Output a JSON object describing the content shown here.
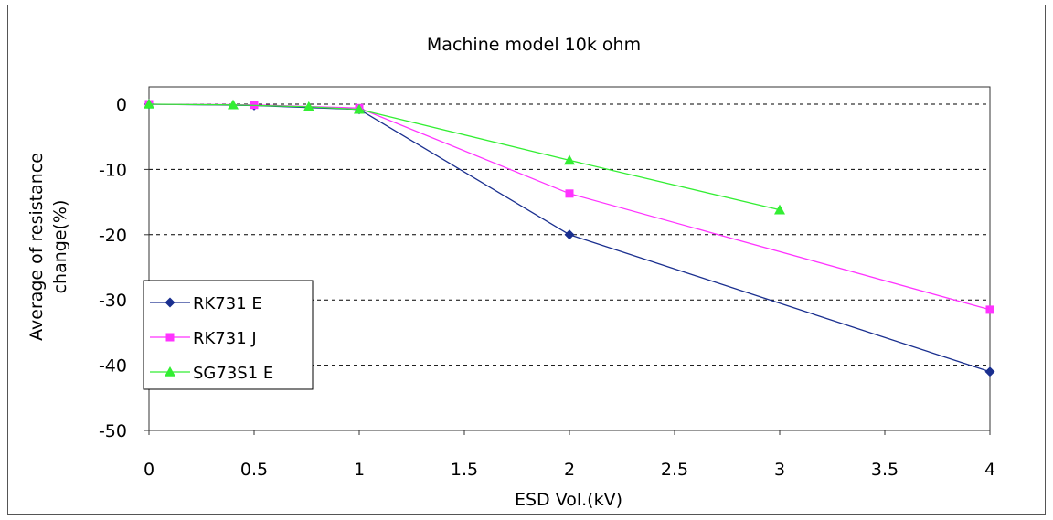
{
  "chart_data": {
    "type": "line",
    "title": "Machine model 10k ohm",
    "xlabel": "ESD Vol.(kV)",
    "ylabel": "Average of resistance change(%)",
    "ylabel_lines": [
      "Average of resistance",
      "change(%)"
    ],
    "xlim": [
      0,
      4
    ],
    "ylim": [
      -50,
      5
    ],
    "x_ticks": [
      0,
      0.5,
      1,
      1.5,
      2,
      2.5,
      3,
      3.5,
      4
    ],
    "x_tick_labels": [
      "0",
      "0.5",
      "1",
      "1.5",
      "2",
      "2.5",
      "3",
      "3.5",
      "4"
    ],
    "y_ticks": [
      0,
      -10,
      -20,
      -30,
      -40,
      -50
    ],
    "y_tick_labels": [
      "0",
      "-10",
      "-20",
      "-30",
      "-40",
      "-50"
    ],
    "grid": "horizontal dashed",
    "legend_position": "bottom-left",
    "series": [
      {
        "name": "RK731 E",
        "color": "#1a2f8f",
        "marker": "diamond",
        "x": [
          0,
          0.5,
          1,
          2,
          4
        ],
        "y": [
          0,
          -0.2,
          -0.8,
          -20,
          -41
        ]
      },
      {
        "name": "RK731 J",
        "color": "#ff33ff",
        "marker": "square",
        "x": [
          0,
          0.5,
          1,
          2,
          4
        ],
        "y": [
          0,
          -0.1,
          -0.6,
          -13.7,
          -31.5
        ]
      },
      {
        "name": "SG73S1 E",
        "color": "#33ee33",
        "marker": "triangle",
        "x": [
          0,
          0.4,
          0.76,
          1,
          2,
          3
        ],
        "y": [
          0,
          -0.1,
          -0.4,
          -0.8,
          -8.6,
          -16.2
        ]
      }
    ]
  }
}
